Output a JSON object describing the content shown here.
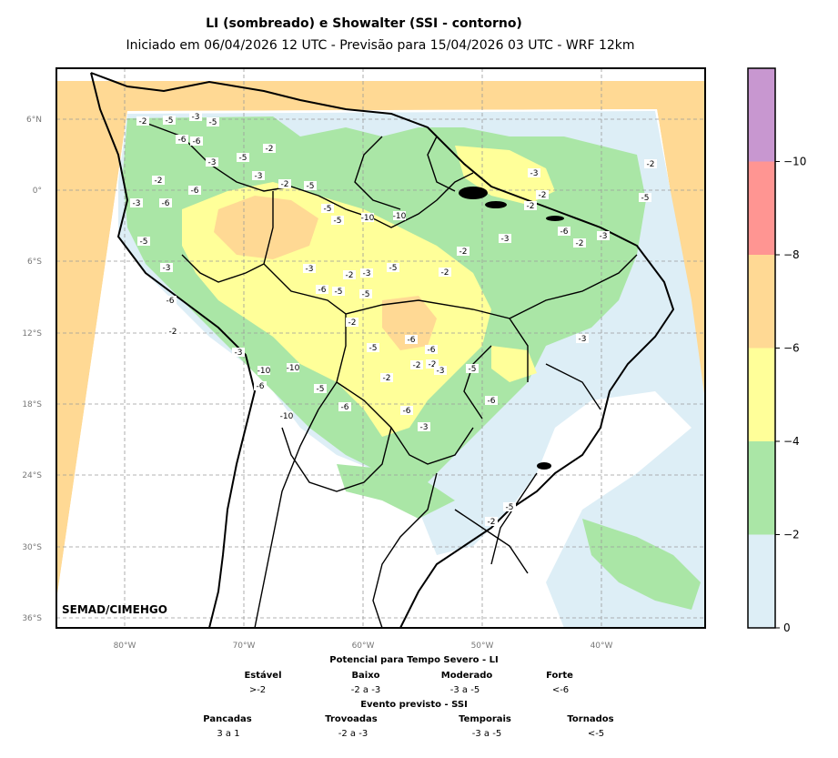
{
  "title": "LI (sombreado) e Showalter (SSI - contorno)",
  "subtitle": "Iniciado em 06/04/2026 12 UTC - Previsão para 15/04/2026 03 UTC - WRF 12km",
  "credit": "SEMAD/CIMEHGO",
  "lat_labels": [
    "6°N",
    "0°",
    "6°S",
    "12°S",
    "18°S",
    "24°S",
    "30°S",
    "36°S"
  ],
  "lon_labels": [
    "80°W",
    "70°W",
    "60°W",
    "50°W",
    "40°W"
  ],
  "colorbar": {
    "ticks": [
      "0",
      "−2",
      "−4",
      "−6",
      "−8",
      "−10"
    ],
    "colors": [
      "#ddeef6",
      "#aae6a6",
      "#ffff99",
      "#ffd994",
      "#ff9592",
      "#c897d0"
    ]
  },
  "contour_labels": [
    "-2",
    "-5",
    "-3",
    "-5",
    "-6",
    "-6",
    "-3",
    "-5",
    "-2",
    "-3",
    "-2",
    "-5",
    "-2",
    "-6",
    "-6",
    "-3",
    "-5",
    "-3",
    "-6",
    "-2",
    "-3",
    "-6",
    "-10",
    "-10",
    "-10",
    "-5",
    "-6",
    "-10",
    "-10",
    "-5",
    "-5",
    "-3",
    "-2",
    "-3",
    "-5",
    "-6",
    "-5",
    "-5",
    "-2",
    "-5",
    "-6",
    "-6",
    "-2",
    "-3",
    "-2",
    "-2",
    "-5",
    "-6",
    "-6",
    "-3",
    "-2",
    "-2",
    "-3",
    "-3",
    "-2",
    "-2",
    "-6",
    "-2",
    "-3",
    "-5",
    "-2",
    "-3",
    "-5",
    "-2"
  ],
  "legend": {
    "li_title": "Potencial para Tempo Severo - LI",
    "li_categories": [
      {
        "name": "Estável",
        "value": ">-2"
      },
      {
        "name": "Baixo",
        "value": "-2 a -3"
      },
      {
        "name": "Moderado",
        "value": "-3 a -5"
      },
      {
        "name": "Forte",
        "value": "<-6"
      }
    ],
    "ssi_title": "Evento previsto - SSI",
    "ssi_categories": [
      {
        "name": "Pancadas",
        "value": "3 a 1"
      },
      {
        "name": "Trovoadas",
        "value": "-2 a -3"
      },
      {
        "name": "Temporais",
        "value": "-3 a -5"
      },
      {
        "name": "Tornados",
        "value": "<-5"
      }
    ]
  }
}
